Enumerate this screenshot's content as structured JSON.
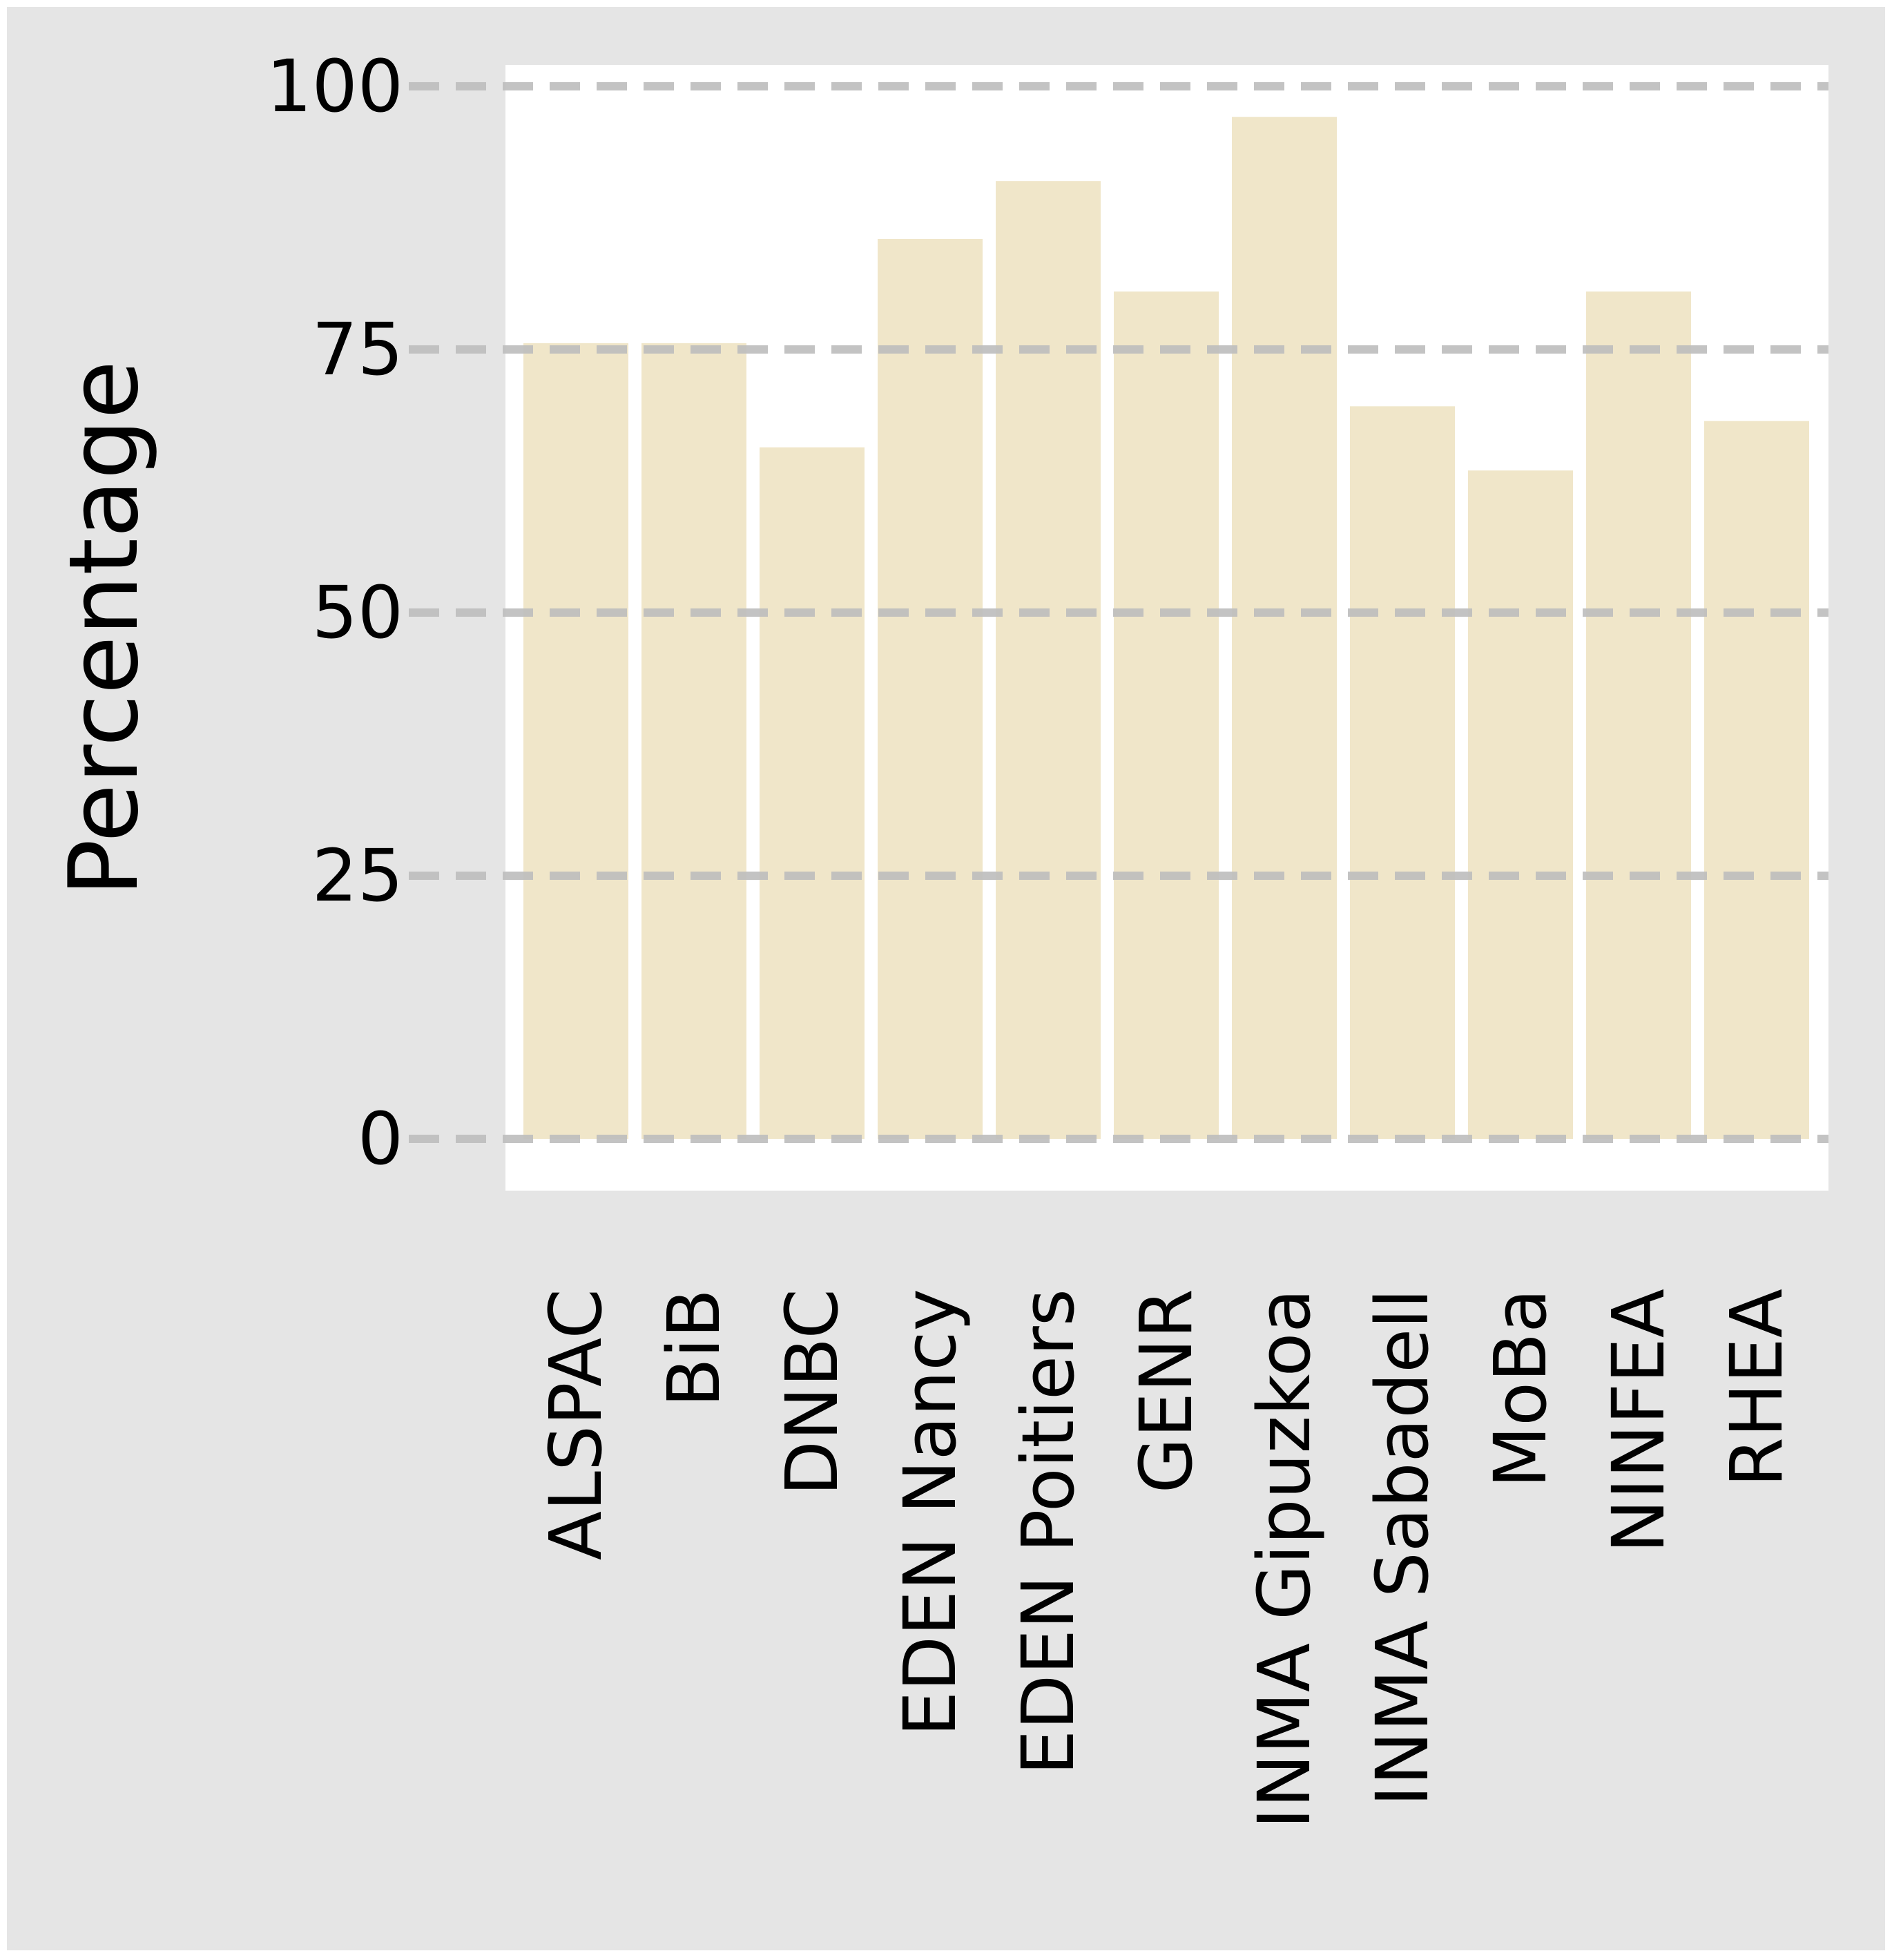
{
  "chart_data": {
    "type": "bar",
    "categories": [
      "ALSPAC",
      "BiB",
      "DNBC",
      "EDEN Nancy",
      "EDEN Poitiers",
      "GENR",
      "INMA Gipuzkoa",
      "INMA Sabadell",
      "MoBa",
      "NINFEA",
      "RHEA"
    ],
    "values": [
      75.6,
      75.6,
      65.7,
      85.5,
      91.0,
      80.5,
      97.1,
      69.6,
      63.5,
      80.5,
      68.2
    ],
    "title": "",
    "xlabel": "",
    "ylabel": "Percentage",
    "ylim": [
      0,
      100
    ],
    "yticks": [
      0,
      25,
      50,
      75,
      100
    ],
    "ytick_labels": [
      "0",
      "25",
      "50",
      "75",
      "100"
    ],
    "grid": "horizontal dashed",
    "legend": "none",
    "colors": {
      "bar": "#f0e6c9",
      "panel": "#ffffff",
      "background": "#e5e5e5",
      "grid": "#bdbdbd",
      "text": "#000000"
    }
  }
}
